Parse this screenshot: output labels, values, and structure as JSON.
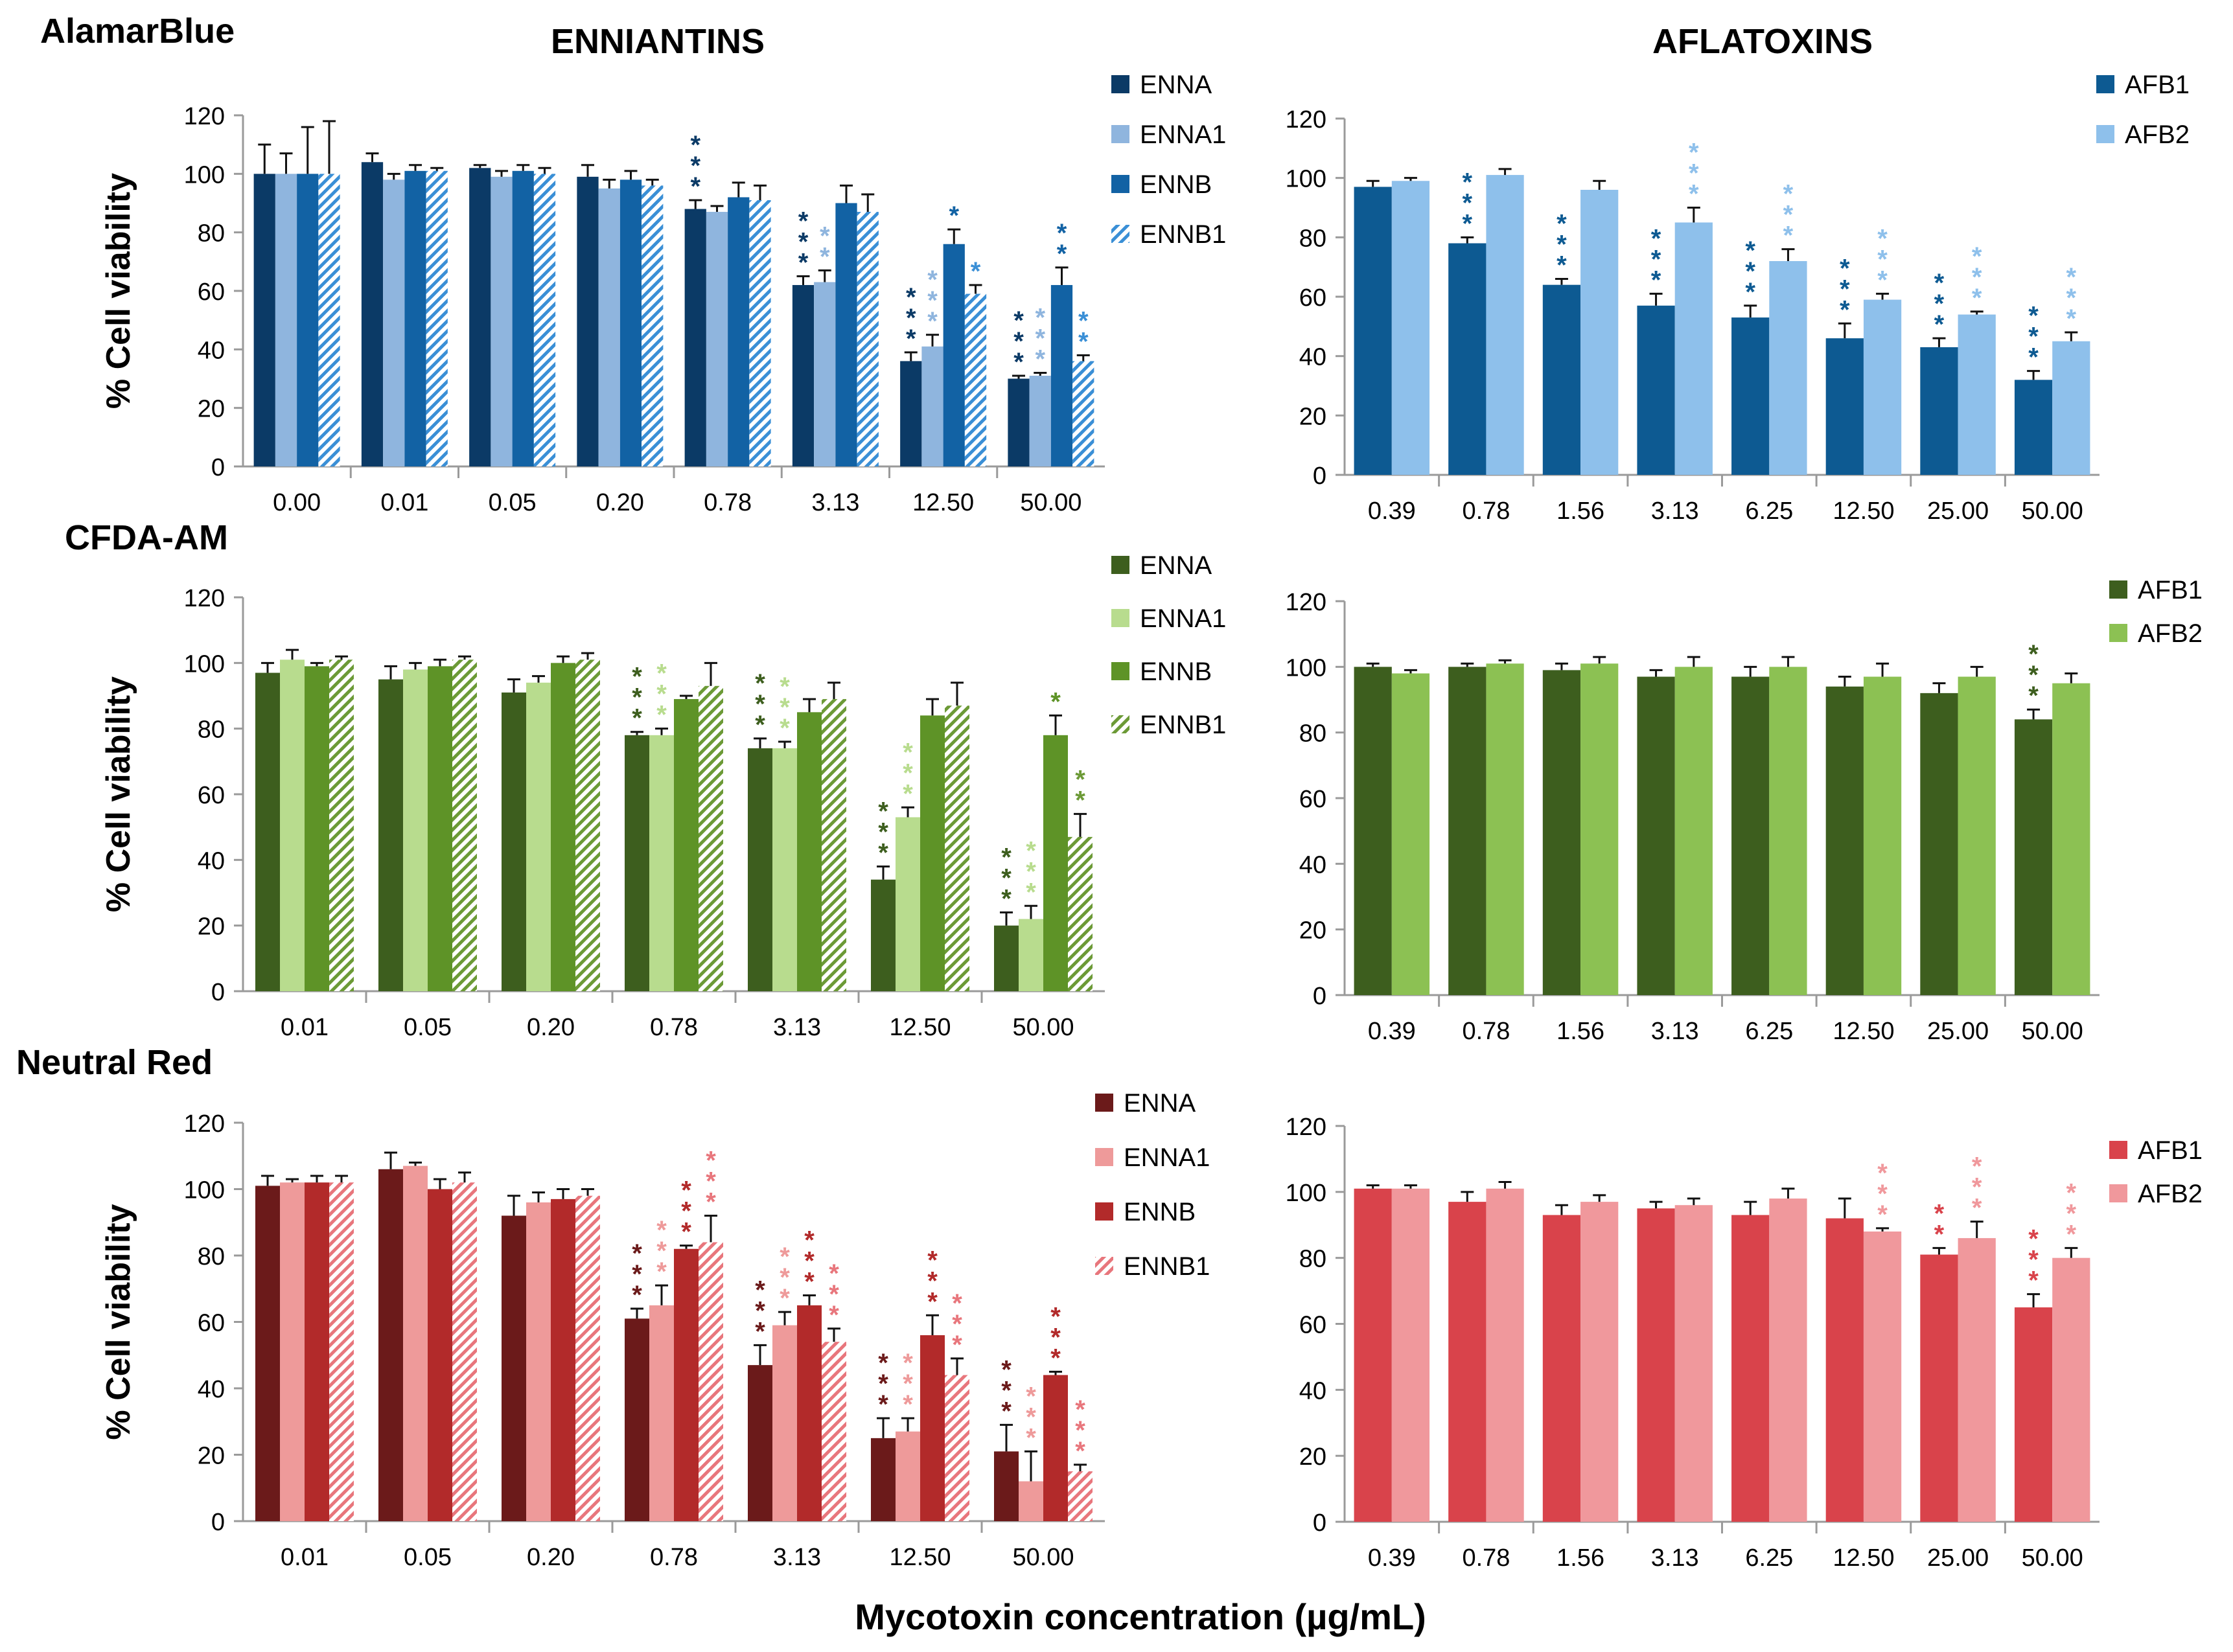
{
  "figure": {
    "section_titles": {
      "enniatins": "ENNIANTINS",
      "aflatoxins": "AFLATOXINS"
    },
    "row_labels": [
      "AlamarBlue",
      "CFDA-AM",
      "Neutral Red"
    ],
    "common_xlabel": "Mycotoxin concentration (µg/mL)"
  },
  "chart_data": [
    {
      "id": "alamar-enn",
      "type": "bar",
      "assay": "AlamarBlue",
      "group": "ENNIANTINS",
      "ylabel": "% Cell viability",
      "ylim": [
        0,
        120
      ],
      "yticks": [
        0,
        20,
        40,
        60,
        80,
        100,
        120
      ],
      "categories": [
        "0.00",
        "0.01",
        "0.05",
        "0.20",
        "0.78",
        "3.13",
        "12.50",
        "50.00"
      ],
      "series": [
        {
          "name": "ENNA",
          "color": "#0b3a66",
          "pattern": "solid",
          "values": [
            100,
            104,
            102,
            99,
            88,
            62,
            36,
            30
          ],
          "errors": [
            10,
            3,
            1,
            4,
            3,
            3,
            3,
            1
          ],
          "stars": [
            0,
            0,
            0,
            0,
            3,
            3,
            3,
            3
          ]
        },
        {
          "name": "ENNA1",
          "color": "#8fb5de",
          "pattern": "solid",
          "values": [
            100,
            98,
            99,
            95,
            87,
            63,
            41,
            31
          ],
          "errors": [
            7,
            2,
            2,
            3,
            2,
            4,
            4,
            1
          ],
          "stars": [
            0,
            0,
            0,
            0,
            0,
            2,
            3,
            3
          ]
        },
        {
          "name": "ENNB",
          "color": "#1262a4",
          "pattern": "solid",
          "values": [
            100,
            101,
            101,
            98,
            92,
            90,
            76,
            62
          ],
          "errors": [
            16,
            2,
            2,
            3,
            5,
            6,
            5,
            6
          ],
          "stars": [
            0,
            0,
            0,
            0,
            0,
            0,
            1,
            2
          ]
        },
        {
          "name": "ENNB1",
          "color": "#3a8fd6",
          "pattern": "hatch",
          "values": [
            100,
            101,
            100,
            96,
            91,
            87,
            59,
            36
          ],
          "errors": [
            18,
            1,
            2,
            2,
            5,
            6,
            3,
            2
          ],
          "stars": [
            0,
            0,
            0,
            0,
            0,
            0,
            1,
            2
          ]
        }
      ]
    },
    {
      "id": "alamar-afb",
      "type": "bar",
      "assay": "AlamarBlue",
      "group": "AFLATOXINS",
      "ylabel": "",
      "ylim": [
        0,
        120
      ],
      "yticks": [
        0,
        20,
        40,
        60,
        80,
        100,
        120
      ],
      "categories": [
        "0.39",
        "0.78",
        "1.56",
        "3.13",
        "6.25",
        "12.50",
        "25.00",
        "50.00"
      ],
      "series": [
        {
          "name": "AFB1",
          "color": "#0d5a92",
          "pattern": "solid",
          "values": [
            97,
            78,
            64,
            57,
            53,
            46,
            43,
            32
          ],
          "errors": [
            2,
            2,
            2,
            4,
            4,
            5,
            3,
            3
          ],
          "stars": [
            0,
            3,
            3,
            3,
            3,
            3,
            3,
            3
          ]
        },
        {
          "name": "AFB2",
          "color": "#8ec0eb",
          "pattern": "solid",
          "values": [
            99,
            101,
            96,
            85,
            72,
            59,
            54,
            45
          ],
          "errors": [
            1,
            2,
            3,
            5,
            4,
            2,
            1,
            3
          ],
          "stars": [
            0,
            0,
            0,
            3,
            3,
            3,
            3,
            3
          ]
        }
      ]
    },
    {
      "id": "cfda-enn",
      "type": "bar",
      "assay": "CFDA-AM",
      "group": "ENNIANTINS",
      "ylabel": "% Cell viability",
      "ylim": [
        0,
        120
      ],
      "yticks": [
        0,
        20,
        40,
        60,
        80,
        100,
        120
      ],
      "categories": [
        "0.01",
        "0.05",
        "0.20",
        "0.78",
        "3.13",
        "12.50",
        "50.00"
      ],
      "series": [
        {
          "name": "ENNA",
          "color": "#3d5e1e",
          "pattern": "solid",
          "values": [
            97,
            95,
            91,
            78,
            74,
            34,
            20
          ],
          "errors": [
            3,
            4,
            4,
            1,
            3,
            4,
            4
          ],
          "stars": [
            0,
            0,
            0,
            3,
            3,
            3,
            3
          ]
        },
        {
          "name": "ENNA1",
          "color": "#b8dc8e",
          "pattern": "solid",
          "values": [
            101,
            98,
            94,
            78,
            74,
            53,
            22
          ],
          "errors": [
            3,
            2,
            2,
            2,
            2,
            3,
            4
          ],
          "stars": [
            0,
            0,
            0,
            3,
            3,
            3,
            3
          ]
        },
        {
          "name": "ENNB",
          "color": "#5e9327",
          "pattern": "solid",
          "values": [
            99,
            99,
            100,
            89,
            85,
            84,
            78
          ],
          "errors": [
            1,
            2,
            2,
            1,
            4,
            5,
            6
          ],
          "stars": [
            0,
            0,
            0,
            0,
            0,
            0,
            1
          ]
        },
        {
          "name": "ENNB1",
          "color": "#6c9a36",
          "pattern": "hatch",
          "values": [
            101,
            101,
            101,
            93,
            89,
            87,
            47
          ],
          "errors": [
            1,
            1,
            2,
            7,
            5,
            7,
            7
          ],
          "stars": [
            0,
            0,
            0,
            0,
            0,
            0,
            2
          ]
        }
      ]
    },
    {
      "id": "cfda-afb",
      "type": "bar",
      "assay": "CFDA-AM",
      "group": "AFLATOXINS",
      "ylabel": "",
      "ylim": [
        0,
        120
      ],
      "yticks": [
        0,
        20,
        40,
        60,
        80,
        100,
        120
      ],
      "categories": [
        "0.39",
        "0.78",
        "1.56",
        "3.13",
        "6.25",
        "12.50",
        "25.00",
        "50.00"
      ],
      "series": [
        {
          "name": "AFB1",
          "color": "#3d5e1e",
          "pattern": "solid",
          "values": [
            100,
            100,
            99,
            97,
            97,
            94,
            92,
            84
          ],
          "errors": [
            1,
            1,
            2,
            2,
            3,
            3,
            3,
            3
          ],
          "stars": [
            0,
            0,
            0,
            0,
            0,
            0,
            0,
            3
          ]
        },
        {
          "name": "AFB2",
          "color": "#8cc153",
          "pattern": "solid",
          "values": [
            98,
            101,
            101,
            100,
            100,
            97,
            97,
            95
          ],
          "errors": [
            1,
            1,
            2,
            3,
            3,
            4,
            3,
            3
          ],
          "stars": [
            0,
            0,
            0,
            0,
            0,
            0,
            0,
            0
          ]
        }
      ]
    },
    {
      "id": "nr-enn",
      "type": "bar",
      "assay": "Neutral Red",
      "group": "ENNIANTINS",
      "ylabel": "% Cell viability",
      "ylim": [
        0,
        120
      ],
      "yticks": [
        0,
        20,
        40,
        60,
        80,
        100,
        120
      ],
      "categories": [
        "0.01",
        "0.05",
        "0.20",
        "0.78",
        "3.13",
        "12.50",
        "50.00"
      ],
      "series": [
        {
          "name": "ENNA",
          "color": "#6b1a1a",
          "pattern": "solid",
          "values": [
            101,
            106,
            92,
            61,
            47,
            25,
            21
          ],
          "errors": [
            3,
            5,
            6,
            3,
            6,
            6,
            8
          ],
          "stars": [
            0,
            0,
            0,
            3,
            3,
            3,
            3
          ]
        },
        {
          "name": "ENNA1",
          "color": "#ee9a9a",
          "pattern": "solid",
          "values": [
            102,
            107,
            96,
            65,
            59,
            27,
            12
          ],
          "errors": [
            1,
            1,
            3,
            6,
            4,
            4,
            9
          ],
          "stars": [
            0,
            0,
            0,
            3,
            3,
            3,
            3
          ]
        },
        {
          "name": "ENNB",
          "color": "#b22a2a",
          "pattern": "solid",
          "values": [
            102,
            100,
            97,
            82,
            65,
            56,
            44
          ],
          "errors": [
            2,
            3,
            3,
            1,
            3,
            6,
            1
          ],
          "stars": [
            0,
            0,
            0,
            3,
            3,
            3,
            3
          ]
        },
        {
          "name": "ENNB1",
          "color": "#e8767c",
          "pattern": "hatch",
          "values": [
            102,
            102,
            98,
            84,
            54,
            44,
            15
          ],
          "errors": [
            2,
            3,
            2,
            8,
            4,
            5,
            2
          ],
          "stars": [
            0,
            0,
            0,
            3,
            3,
            3,
            3
          ]
        }
      ]
    },
    {
      "id": "nr-afb",
      "type": "bar",
      "assay": "Neutral Red",
      "group": "AFLATOXINS",
      "ylabel": "",
      "ylim": [
        0,
        120
      ],
      "yticks": [
        0,
        20,
        40,
        60,
        80,
        100,
        120
      ],
      "categories": [
        "0.39",
        "0.78",
        "1.56",
        "3.13",
        "6.25",
        "12.50",
        "25.00",
        "50.00"
      ],
      "series": [
        {
          "name": "AFB1",
          "color": "#d9434b",
          "pattern": "solid",
          "values": [
            101,
            97,
            93,
            95,
            93,
            92,
            81,
            65
          ],
          "errors": [
            1,
            3,
            3,
            2,
            4,
            6,
            2,
            4
          ],
          "stars": [
            0,
            0,
            0,
            0,
            0,
            0,
            2,
            3
          ]
        },
        {
          "name": "AFB2",
          "color": "#f0989c",
          "pattern": "solid",
          "values": [
            101,
            101,
            97,
            96,
            98,
            88,
            86,
            80
          ],
          "errors": [
            1,
            2,
            2,
            2,
            3,
            1,
            5,
            3
          ],
          "stars": [
            0,
            0,
            0,
            0,
            0,
            3,
            3,
            3
          ]
        }
      ]
    }
  ]
}
